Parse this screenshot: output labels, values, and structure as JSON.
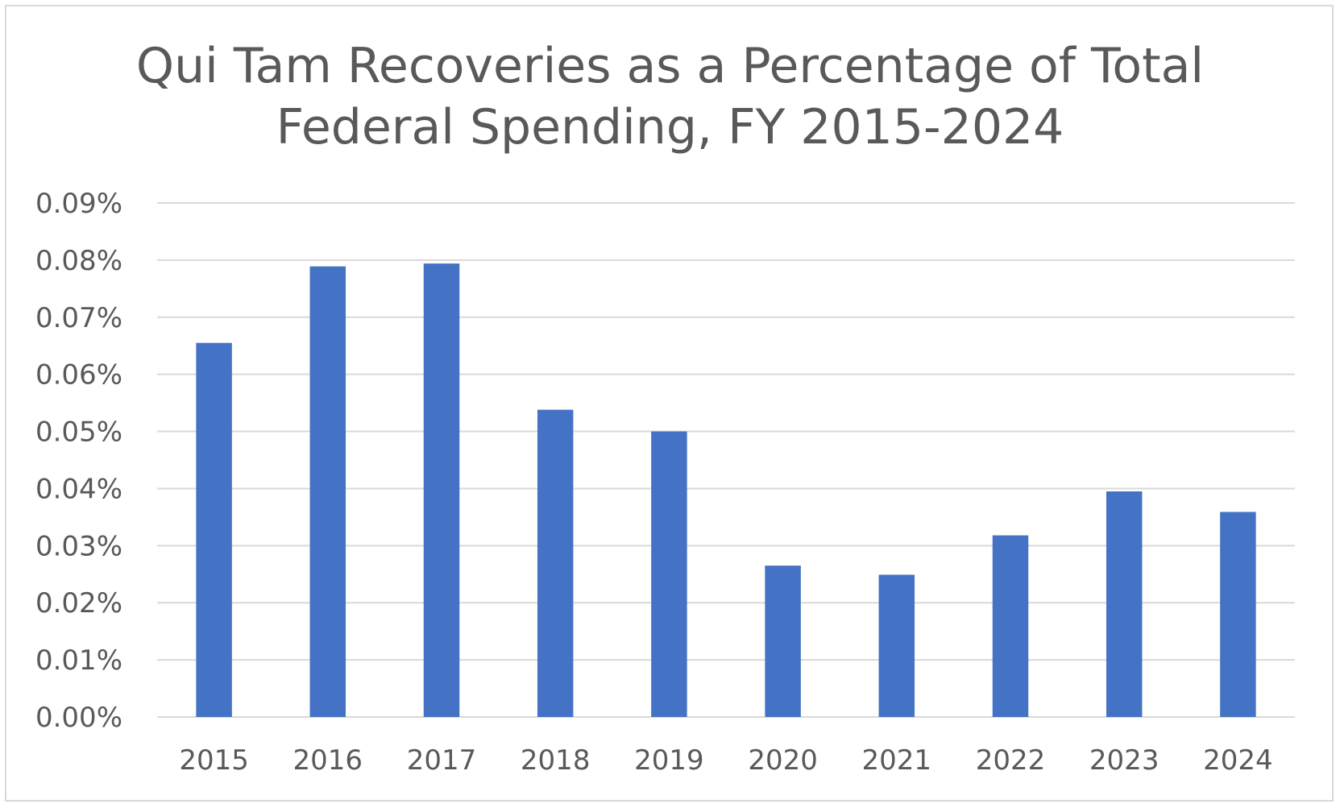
{
  "chart_data": {
    "type": "bar",
    "title_lines": [
      "Qui Tam Recoveries as a Percentage of Total",
      "Federal Spending, FY 2015-2024"
    ],
    "categories": [
      "2015",
      "2016",
      "2017",
      "2018",
      "2019",
      "2020",
      "2021",
      "2022",
      "2023",
      "2024"
    ],
    "values": [
      0.0655,
      0.0789,
      0.0794,
      0.0538,
      0.05,
      0.0265,
      0.0249,
      0.0318,
      0.0395,
      0.0359
    ],
    "value_unit": "%",
    "xlabel": "",
    "ylabel": "",
    "ylim": [
      0,
      0.09
    ],
    "yticks": [
      "0.00%",
      "0.01%",
      "0.02%",
      "0.03%",
      "0.04%",
      "0.05%",
      "0.06%",
      "0.07%",
      "0.08%",
      "0.09%"
    ],
    "ytick_values": [
      0,
      0.01,
      0.02,
      0.03,
      0.04,
      0.05,
      0.06,
      0.07,
      0.08,
      0.09
    ],
    "grid": true,
    "legend": "none",
    "colors": {
      "bar": "#4472c4",
      "grid": "#d9d9d9",
      "text": "#595959",
      "border": "#d9d9d9"
    }
  }
}
